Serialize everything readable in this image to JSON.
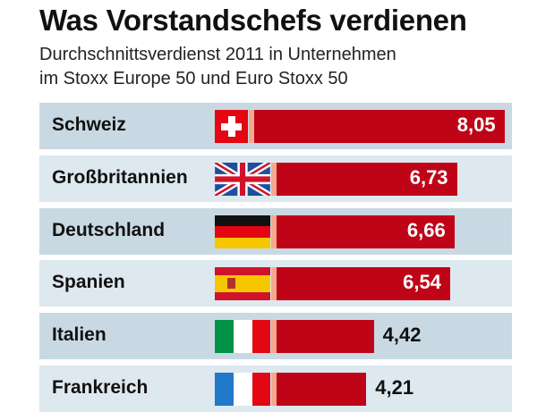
{
  "chart_data": {
    "type": "bar",
    "title": "Was Vorstandschefs verdienen",
    "subtitle_lines": [
      "Durchschnittsverdienst 2011 in Unternehmen",
      "im Stoxx Europe 50 und Euro Stoxx 50"
    ],
    "categories": [
      "Schweiz",
      "Großbritannien",
      "Deutschland",
      "Spanien",
      "Italien",
      "Frankreich"
    ],
    "values": [
      8.05,
      6.73,
      6.66,
      6.54,
      4.42,
      4.21
    ],
    "value_labels": [
      "8,05",
      "6,73",
      "6,66",
      "6,54",
      "4,42",
      "4,21"
    ],
    "flags": [
      "switzerland-flag",
      "uk-flag",
      "germany-flag",
      "spain-flag",
      "italy-flag",
      "france-flag"
    ],
    "xlabel": "",
    "ylabel": "",
    "orientation": "horizontal",
    "colors": {
      "bar": "#c00418",
      "row_dark": "#c9d9e3",
      "row_light": "#dde8ef",
      "divider": "#f3a98e"
    }
  }
}
